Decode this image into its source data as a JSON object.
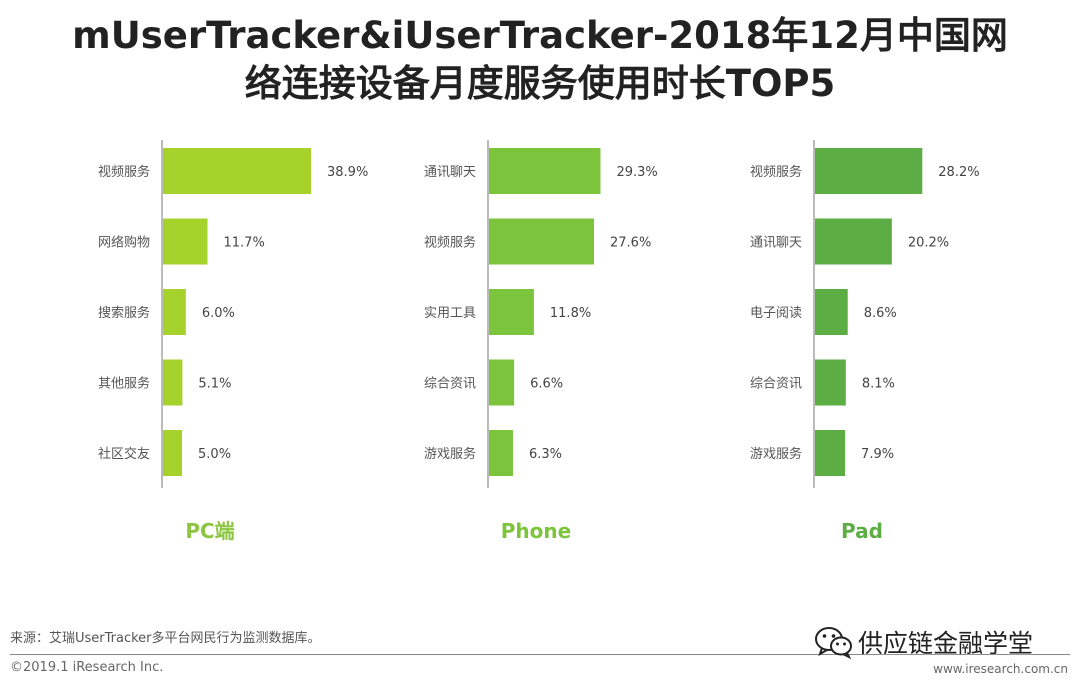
{
  "title": {
    "line1": "mUserTracker&iUserTracker-2018年12月中国网",
    "line2": "络连接设备月度服务使用时长TOP5"
  },
  "colors": {
    "pc": "#a6d22c",
    "phone": "#7cc43c",
    "pad": "#5cae44",
    "label_pc": "#8cc63f",
    "label_phone": "#7cc43c",
    "label_pad": "#5cae44"
  },
  "chart_data": [
    {
      "type": "bar",
      "orientation": "horizontal",
      "title": "PC端",
      "categories": [
        "视频服务",
        "网络购物",
        "搜索服务",
        "其他服务",
        "社区交友"
      ],
      "values": [
        38.9,
        11.7,
        6.0,
        5.1,
        5.0
      ],
      "value_labels": [
        "38.9%",
        "11.7%",
        "6.0%",
        "5.1%",
        "5.0%"
      ],
      "unit": "%"
    },
    {
      "type": "bar",
      "orientation": "horizontal",
      "title": "Phone",
      "categories": [
        "通讯聊天",
        "视频服务",
        "实用工具",
        "综合资讯",
        "游戏服务"
      ],
      "values": [
        29.3,
        27.6,
        11.8,
        6.6,
        6.3
      ],
      "value_labels": [
        "29.3%",
        "27.6%",
        "11.8%",
        "6.6%",
        "6.3%"
      ],
      "unit": "%"
    },
    {
      "type": "bar",
      "orientation": "horizontal",
      "title": "Pad",
      "categories": [
        "视频服务",
        "通讯聊天",
        "电子阅读",
        "综合资讯",
        "游戏服务"
      ],
      "values": [
        28.2,
        20.2,
        8.6,
        8.1,
        7.9
      ],
      "value_labels": [
        "28.2%",
        "20.2%",
        "8.6%",
        "8.1%",
        "7.9%"
      ],
      "unit": "%"
    }
  ],
  "footer": {
    "source": "来源：艾瑞UserTracker多平台网民行为监测数据库。",
    "copyright": "©2019.1 iResearch Inc.",
    "website": "www.iresearch.com.cn",
    "wechat_name": "供应链金融学堂",
    "wechat_icon": "wechat-icon"
  }
}
